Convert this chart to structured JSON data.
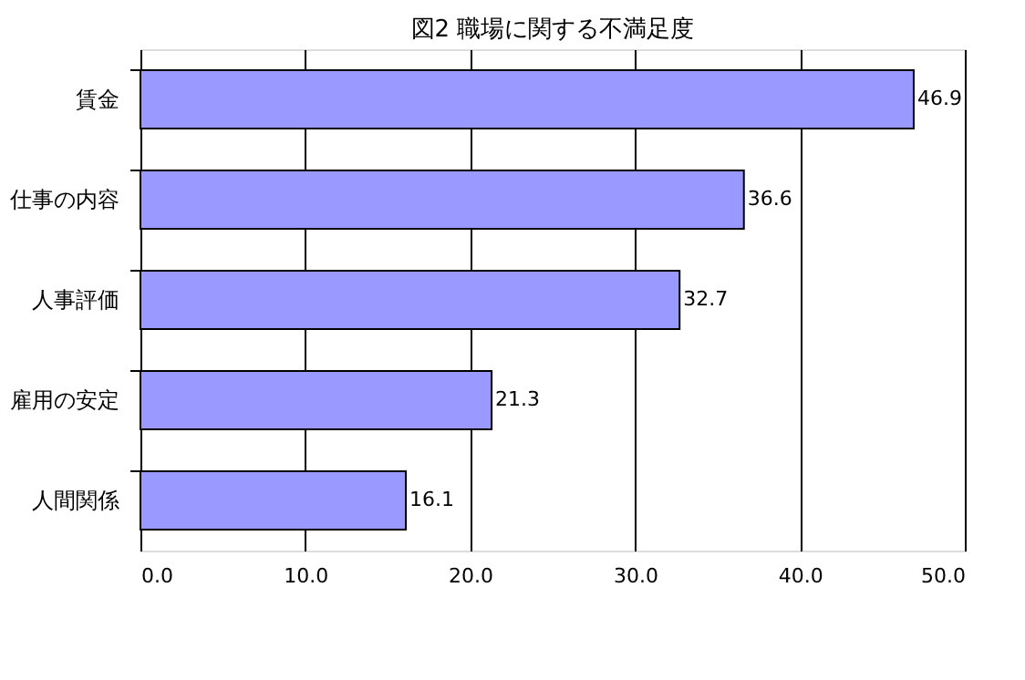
{
  "chart_data": {
    "type": "bar",
    "orientation": "horizontal",
    "title": "図2  職場に関する不満足度",
    "categories": [
      "賃金",
      "仕事の内容",
      "人事評価",
      "雇用の安定",
      "人間関係"
    ],
    "values": [
      46.9,
      36.6,
      32.7,
      21.3,
      16.1
    ],
    "color": "#9999ff",
    "xlim": [
      0,
      50
    ],
    "xticks": [
      {
        "value": 0,
        "label": "0.0"
      },
      {
        "value": 10,
        "label": "10.0"
      },
      {
        "value": 20,
        "label": "20.0"
      },
      {
        "value": 30,
        "label": "30.0"
      },
      {
        "value": 40,
        "label": "40.0"
      },
      {
        "value": 50,
        "label": "50.0"
      }
    ],
    "grid": "x",
    "data_labels": true
  }
}
